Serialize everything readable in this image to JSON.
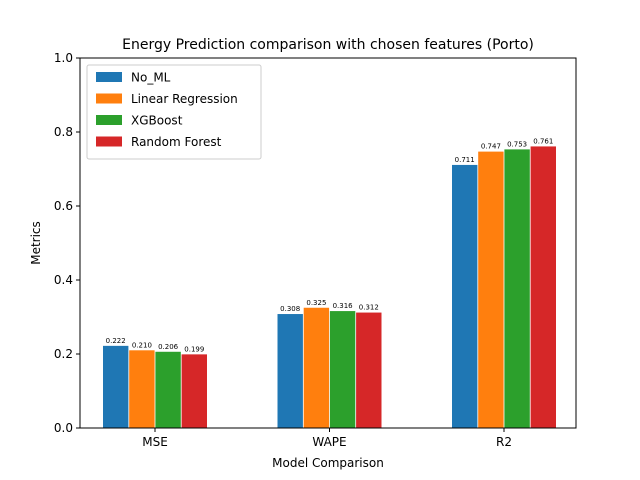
{
  "chart_data": {
    "type": "bar",
    "title": "Energy Prediction comparison with chosen features (Porto)",
    "xlabel": "Model Comparison",
    "ylabel": "Metrics",
    "ylim": [
      0,
      1.0
    ],
    "yticks": [
      "0.0",
      "0.2",
      "0.4",
      "0.6",
      "0.8",
      "1.0"
    ],
    "categories": [
      "MSE",
      "WAPE",
      "R2"
    ],
    "legend_position": "top-left",
    "grid": false,
    "series": [
      {
        "name": "No_ML",
        "color": "#1f77b4",
        "values": [
          0.222,
          0.308,
          0.711
        ],
        "labels": [
          "0.222",
          "0.308",
          "0.711"
        ]
      },
      {
        "name": "Linear Regression",
        "color": "#ff7f0e",
        "values": [
          0.21,
          0.325,
          0.747
        ],
        "labels": [
          "0.210",
          "0.325",
          "0.747"
        ]
      },
      {
        "name": "XGBoost",
        "color": "#2ca02c",
        "values": [
          0.206,
          0.316,
          0.753
        ],
        "labels": [
          "0.206",
          "0.316",
          "0.753"
        ]
      },
      {
        "name": "Random Forest",
        "color": "#d62728",
        "values": [
          0.199,
          0.312,
          0.761
        ],
        "labels": [
          "0.199",
          "0.312",
          "0.761"
        ]
      }
    ]
  }
}
